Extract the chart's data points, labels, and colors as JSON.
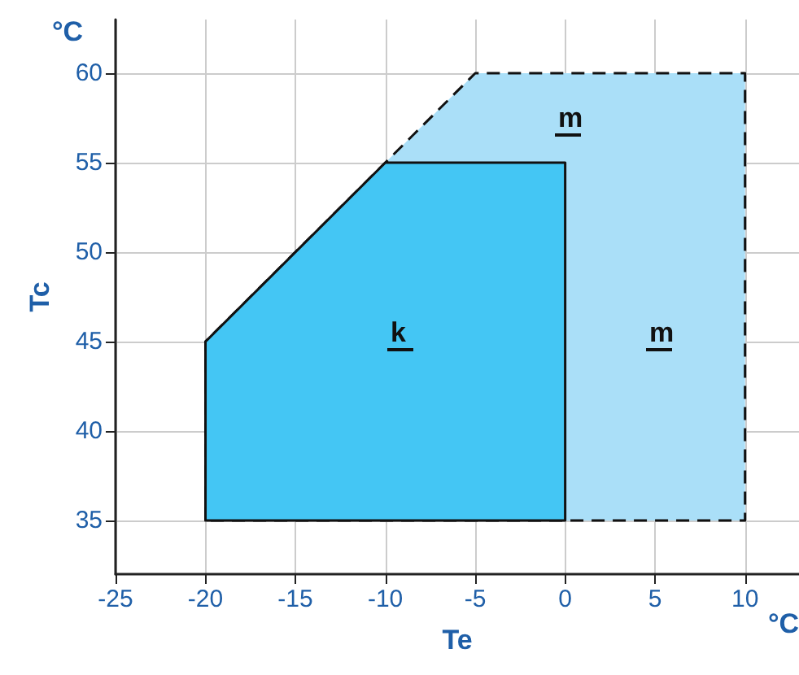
{
  "chart_data": {
    "type": "area",
    "xlabel": "Te",
    "ylabel": "Tc",
    "xlim": [
      -25,
      13
    ],
    "ylim": [
      32,
      63
    ],
    "xticks": [
      -25,
      -20,
      -15,
      -10,
      -5,
      0,
      5,
      10
    ],
    "yticks": [
      35,
      40,
      45,
      50,
      55,
      60
    ],
    "grid": true,
    "series": [
      {
        "x": [
          -20,
          -20,
          -5,
          10,
          10
        ],
        "values": [
          35,
          45,
          60,
          60,
          35
        ],
        "color": "#aadff8",
        "line_style": "dashed"
      },
      {
        "x": [
          -20,
          -20,
          -10,
          0,
          0
        ],
        "values": [
          35,
          45,
          55,
          55,
          35
        ],
        "color": "#44c6f4",
        "line_style": "solid"
      }
    ],
    "annotations": [
      "k",
      "m",
      "m",
      "°C",
      "°C"
    ]
  }
}
